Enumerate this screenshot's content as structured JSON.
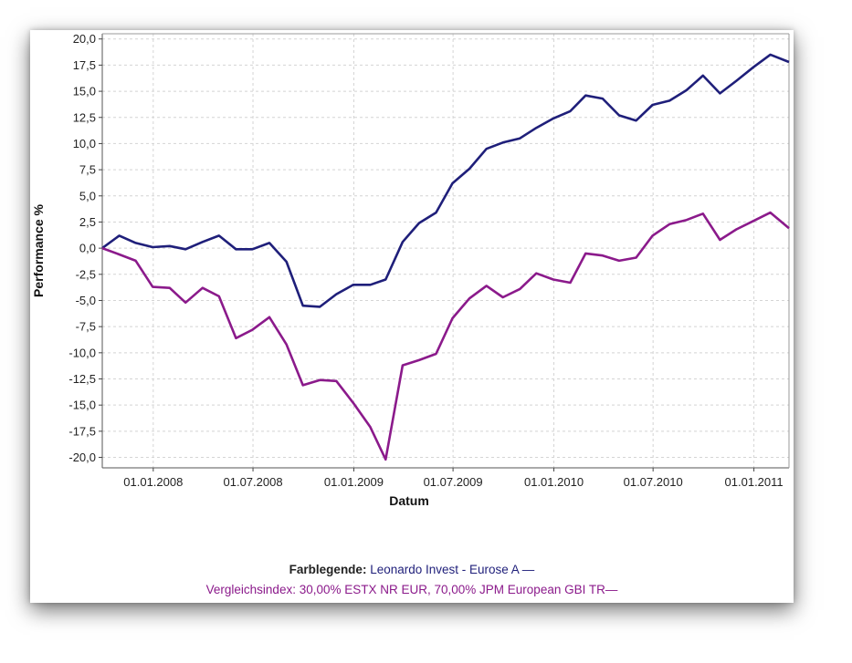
{
  "chart_data": {
    "type": "line",
    "ylabel": "Performance %",
    "xlabel": "Datum",
    "ylim": [
      -21,
      20.5
    ],
    "y_ticks": [
      "20,0",
      "17,5",
      "15,0",
      "12,5",
      "10,0",
      "7,5",
      "5,0",
      "2,5",
      "0,0",
      "-2,5",
      "-5,0",
      "-7,5",
      "-10,0",
      "-12,5",
      "-15,0",
      "-17,5",
      "-20,0"
    ],
    "y_tick_values": [
      20,
      17.5,
      15,
      12.5,
      10,
      7.5,
      5,
      2.5,
      0,
      -2.5,
      -5,
      -7.5,
      -10,
      -12.5,
      -15,
      -17.5,
      -20
    ],
    "x_range": [
      "2007-09-30",
      "2011-03-06"
    ],
    "x_ticks": [
      "01.01.2008",
      "01.07.2008",
      "01.01.2009",
      "01.07.2009",
      "01.01.2010",
      "01.07.2010",
      "01.01.2011"
    ],
    "x_tick_dates": [
      "2008-01-01",
      "2008-07-01",
      "2009-01-01",
      "2009-07-01",
      "2010-01-01",
      "2010-07-01",
      "2011-01-01"
    ],
    "grid": true,
    "series": [
      {
        "name": "Leonardo Invest - Eurose A",
        "color": "#1f1f7a",
        "points": [
          [
            "2007-09-30",
            0.0
          ],
          [
            "2007-10-31",
            1.2
          ],
          [
            "2007-11-30",
            0.5
          ],
          [
            "2007-12-31",
            0.1
          ],
          [
            "2008-01-31",
            0.2
          ],
          [
            "2008-02-29",
            -0.1
          ],
          [
            "2008-03-31",
            0.6
          ],
          [
            "2008-04-30",
            1.2
          ],
          [
            "2008-05-31",
            -0.1
          ],
          [
            "2008-06-30",
            -0.1
          ],
          [
            "2008-07-31",
            0.5
          ],
          [
            "2008-08-31",
            -1.3
          ],
          [
            "2008-09-30",
            -5.5
          ],
          [
            "2008-10-31",
            -5.6
          ],
          [
            "2008-11-30",
            -4.4
          ],
          [
            "2008-12-31",
            -3.5
          ],
          [
            "2009-01-31",
            -3.5
          ],
          [
            "2009-02-28",
            -3.0
          ],
          [
            "2009-03-31",
            0.6
          ],
          [
            "2009-04-30",
            2.4
          ],
          [
            "2009-05-31",
            3.4
          ],
          [
            "2009-06-30",
            6.2
          ],
          [
            "2009-07-31",
            7.6
          ],
          [
            "2009-08-31",
            9.5
          ],
          [
            "2009-09-30",
            10.1
          ],
          [
            "2009-10-31",
            10.5
          ],
          [
            "2009-11-30",
            11.5
          ],
          [
            "2009-12-31",
            12.4
          ],
          [
            "2010-01-31",
            13.1
          ],
          [
            "2010-02-28",
            14.6
          ],
          [
            "2010-03-31",
            14.3
          ],
          [
            "2010-04-30",
            12.7
          ],
          [
            "2010-05-31",
            12.2
          ],
          [
            "2010-06-30",
            13.7
          ],
          [
            "2010-07-31",
            14.1
          ],
          [
            "2010-08-31",
            15.1
          ],
          [
            "2010-09-30",
            16.5
          ],
          [
            "2010-10-31",
            14.8
          ],
          [
            "2010-11-30",
            16.0
          ],
          [
            "2010-12-31",
            17.3
          ],
          [
            "2011-01-31",
            18.5
          ],
          [
            "2011-03-06",
            17.8
          ]
        ]
      },
      {
        "name": "Vergleichsindex: 30,00% ESTX NR EUR, 70,00% JPM European GBI TR",
        "color": "#8b1a8b",
        "points": [
          [
            "2007-09-30",
            0.0
          ],
          [
            "2007-10-31",
            -0.6
          ],
          [
            "2007-11-30",
            -1.2
          ],
          [
            "2007-12-31",
            -3.7
          ],
          [
            "2008-01-31",
            -3.8
          ],
          [
            "2008-02-29",
            -5.2
          ],
          [
            "2008-03-31",
            -3.8
          ],
          [
            "2008-04-30",
            -4.6
          ],
          [
            "2008-05-31",
            -8.6
          ],
          [
            "2008-06-30",
            -7.8
          ],
          [
            "2008-07-31",
            -6.6
          ],
          [
            "2008-08-31",
            -9.2
          ],
          [
            "2008-09-30",
            -13.1
          ],
          [
            "2008-10-31",
            -12.6
          ],
          [
            "2008-11-30",
            -12.7
          ],
          [
            "2008-12-31",
            -14.8
          ],
          [
            "2009-01-31",
            -17.1
          ],
          [
            "2009-02-28",
            -20.2
          ],
          [
            "2009-03-31",
            -11.2
          ],
          [
            "2009-04-30",
            -10.7
          ],
          [
            "2009-05-31",
            -10.1
          ],
          [
            "2009-06-30",
            -6.7
          ],
          [
            "2009-07-31",
            -4.8
          ],
          [
            "2009-08-31",
            -3.6
          ],
          [
            "2009-09-30",
            -4.7
          ],
          [
            "2009-10-31",
            -3.9
          ],
          [
            "2009-11-30",
            -2.4
          ],
          [
            "2009-12-31",
            -3.0
          ],
          [
            "2010-01-31",
            -3.3
          ],
          [
            "2010-02-28",
            -0.5
          ],
          [
            "2010-03-31",
            -0.7
          ],
          [
            "2010-04-30",
            -1.2
          ],
          [
            "2010-05-31",
            -0.9
          ],
          [
            "2010-06-30",
            1.2
          ],
          [
            "2010-07-31",
            2.3
          ],
          [
            "2010-08-31",
            2.7
          ],
          [
            "2010-09-30",
            3.3
          ],
          [
            "2010-10-31",
            0.8
          ],
          [
            "2010-11-30",
            1.8
          ],
          [
            "2010-12-31",
            2.6
          ],
          [
            "2011-01-31",
            3.4
          ],
          [
            "2011-03-06",
            1.9
          ]
        ]
      }
    ]
  },
  "legend": {
    "label": "Farblegende:",
    "series1_text": "Leonardo Invest - Eurose A —",
    "series2_text": "Vergleichsindex: 30,00% ESTX NR EUR, 70,00% JPM European GBI TR—",
    "series1_color": "#1f1f7a",
    "series2_color": "#8b1a8b"
  }
}
